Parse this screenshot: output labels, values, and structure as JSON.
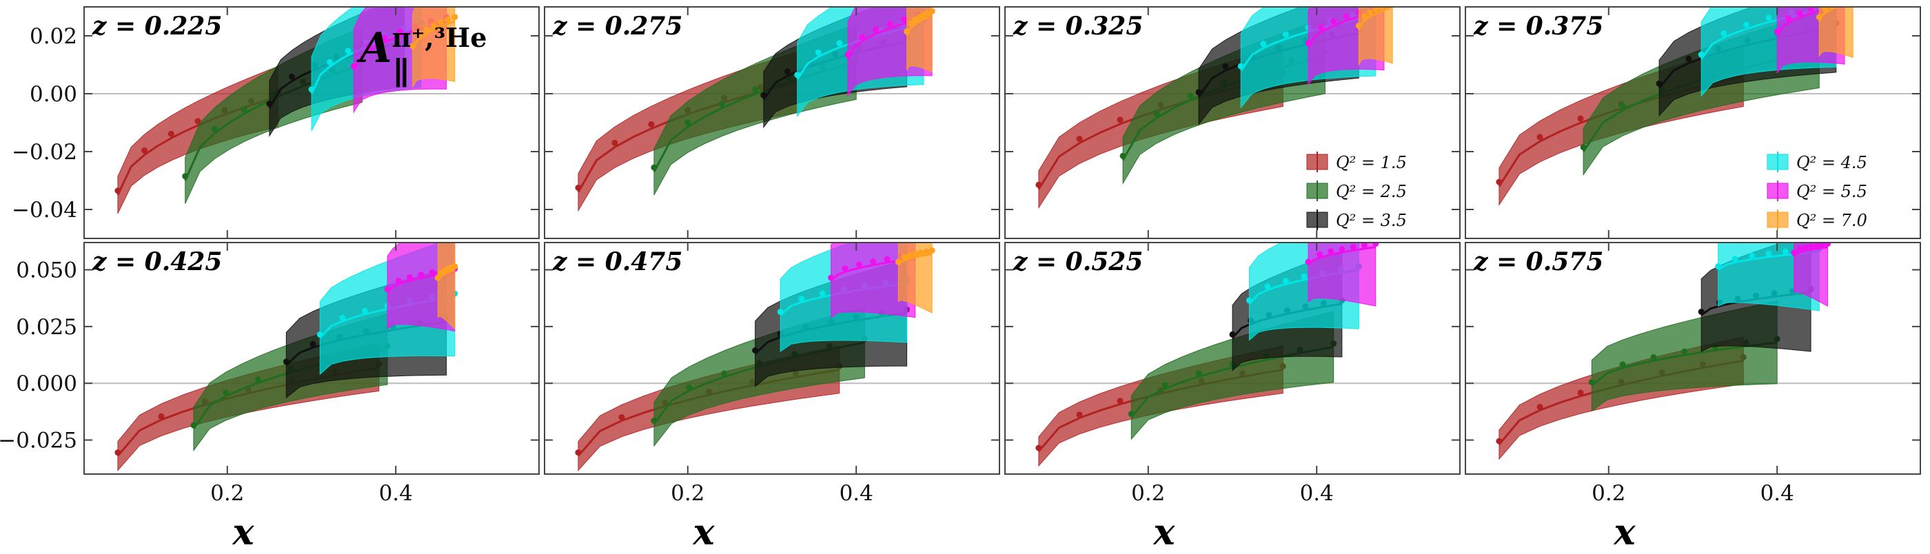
{
  "chart_data": {
    "type": "line",
    "figure_label": "A_{∥}^{π⁺,³He}",
    "figure_label_main": "A",
    "figure_label_sub": "∥",
    "figure_label_sup": "π⁺,³He",
    "xlabel": "x",
    "x_ticks": [
      "0.2",
      "0.4"
    ],
    "xlim": [
      0.03,
      0.57
    ],
    "row_ylims": [
      [
        -0.05,
        0.03
      ],
      [
        -0.04,
        0.062
      ]
    ],
    "row_yticks": [
      [
        {
          "v": 0.02,
          "label": "0.02"
        },
        {
          "v": 0.0,
          "label": "0.00"
        },
        {
          "v": -0.02,
          "label": "−0.02"
        },
        {
          "v": -0.04,
          "label": "−0.04"
        }
      ],
      [
        {
          "v": 0.05,
          "label": "0.050"
        },
        {
          "v": 0.025,
          "label": "0.025"
        },
        {
          "v": 0.0,
          "label": "0.000"
        },
        {
          "v": -0.025,
          "label": "−0.025"
        }
      ]
    ],
    "zero_line": true,
    "series_meta": [
      {
        "name": "Q² = 1.5",
        "color": "#b22222"
      },
      {
        "name": "Q² = 2.5",
        "color": "#1f6e1f"
      },
      {
        "name": "Q² = 3.5",
        "color": "#111111"
      },
      {
        "name": "Q² = 4.5",
        "color": "#00e5e5"
      },
      {
        "name": "Q² = 5.5",
        "color": "#ee11ee"
      },
      {
        "name": "Q² = 7.0",
        "color": "#ffa020"
      }
    ],
    "legend_left": {
      "panel": 2,
      "items": [
        0,
        1,
        2
      ]
    },
    "legend_right": {
      "panel": 3,
      "items": [
        3,
        4,
        5
      ]
    },
    "panels": [
      {
        "title": "z = 0.225",
        "row": 0,
        "col": 0,
        "series": [
          {
            "s": 0,
            "x0": 0.07,
            "x1": 0.26,
            "y0": -0.035,
            "y1": -0.001,
            "w": 0.008
          },
          {
            "s": 1,
            "x0": 0.15,
            "x1": 0.36,
            "y0": -0.03,
            "y1": 0.01,
            "w": 0.01
          },
          {
            "s": 2,
            "x0": 0.25,
            "x1": 0.41,
            "y0": -0.005,
            "y1": 0.018,
            "w": 0.012
          },
          {
            "s": 3,
            "x0": 0.3,
            "x1": 0.43,
            "y0": 0.0,
            "y1": 0.023,
            "w": 0.016
          },
          {
            "s": 4,
            "x0": 0.35,
            "x1": 0.46,
            "y0": 0.008,
            "y1": 0.025,
            "w": 0.018
          },
          {
            "s": 5,
            "x0": 0.42,
            "x1": 0.47,
            "y0": 0.015,
            "y1": 0.025,
            "w": 0.016
          }
        ]
      },
      {
        "title": "z = 0.275",
        "row": 0,
        "col": 1,
        "series": [
          {
            "s": 0,
            "x0": 0.07,
            "x1": 0.33,
            "y0": -0.034,
            "y1": 0.004,
            "w": 0.008
          },
          {
            "s": 1,
            "x0": 0.16,
            "x1": 0.4,
            "y0": -0.027,
            "y1": 0.011,
            "w": 0.01
          },
          {
            "s": 2,
            "x0": 0.29,
            "x1": 0.46,
            "y0": -0.002,
            "y1": 0.018,
            "w": 0.012
          },
          {
            "s": 3,
            "x0": 0.33,
            "x1": 0.48,
            "y0": 0.005,
            "y1": 0.024,
            "w": 0.016
          },
          {
            "s": 4,
            "x0": 0.39,
            "x1": 0.49,
            "y0": 0.012,
            "y1": 0.027,
            "w": 0.016
          },
          {
            "s": 5,
            "x0": 0.46,
            "x1": 0.49,
            "y0": 0.02,
            "y1": 0.027,
            "w": 0.015
          }
        ]
      },
      {
        "title": "z = 0.325",
        "row": 0,
        "col": 2,
        "series": [
          {
            "s": 0,
            "x0": 0.07,
            "x1": 0.36,
            "y0": -0.033,
            "y1": 0.006,
            "w": 0.008
          },
          {
            "s": 1,
            "x0": 0.17,
            "x1": 0.41,
            "y0": -0.023,
            "y1": 0.013,
            "w": 0.01
          },
          {
            "s": 2,
            "x0": 0.26,
            "x1": 0.45,
            "y0": -0.001,
            "y1": 0.021,
            "w": 0.012
          },
          {
            "s": 3,
            "x0": 0.31,
            "x1": 0.47,
            "y0": 0.008,
            "y1": 0.027,
            "w": 0.016
          },
          {
            "s": 4,
            "x0": 0.39,
            "x1": 0.48,
            "y0": 0.016,
            "y1": 0.029,
            "w": 0.016
          },
          {
            "s": 5,
            "x0": 0.45,
            "x1": 0.49,
            "y0": 0.022,
            "y1": 0.03,
            "w": 0.015
          }
        ]
      },
      {
        "title": "z = 0.375",
        "row": 0,
        "col": 3,
        "series": [
          {
            "s": 0,
            "x0": 0.07,
            "x1": 0.36,
            "y0": -0.032,
            "y1": 0.006,
            "w": 0.008
          },
          {
            "s": 1,
            "x0": 0.17,
            "x1": 0.45,
            "y0": -0.02,
            "y1": 0.015,
            "w": 0.01
          },
          {
            "s": 2,
            "x0": 0.26,
            "x1": 0.47,
            "y0": 0.002,
            "y1": 0.023,
            "w": 0.012
          },
          {
            "s": 3,
            "x0": 0.31,
            "x1": 0.47,
            "y0": 0.012,
            "y1": 0.03,
            "w": 0.016
          },
          {
            "s": 4,
            "x0": 0.4,
            "x1": 0.48,
            "y0": 0.02,
            "y1": 0.031,
            "w": 0.016
          },
          {
            "s": 5,
            "x0": 0.45,
            "x1": 0.49,
            "y0": 0.025,
            "y1": 0.032,
            "w": 0.015
          }
        ]
      },
      {
        "title": "z = 0.425",
        "row": 1,
        "col": 0,
        "series": [
          {
            "s": 0,
            "x0": 0.07,
            "x1": 0.38,
            "y0": -0.032,
            "y1": 0.007,
            "w": 0.008
          },
          {
            "s": 1,
            "x0": 0.16,
            "x1": 0.39,
            "y0": -0.02,
            "y1": 0.015,
            "w": 0.012
          },
          {
            "s": 2,
            "x0": 0.27,
            "x1": 0.46,
            "y0": 0.008,
            "y1": 0.027,
            "w": 0.018
          },
          {
            "s": 3,
            "x0": 0.31,
            "x1": 0.47,
            "y0": 0.02,
            "y1": 0.038,
            "w": 0.02
          },
          {
            "s": 4,
            "x0": 0.39,
            "x1": 0.47,
            "y0": 0.04,
            "y1": 0.049,
            "w": 0.02
          },
          {
            "s": 5,
            "x0": 0.45,
            "x1": 0.47,
            "y0": 0.045,
            "y1": 0.05,
            "w": 0.02
          }
        ]
      },
      {
        "title": "z = 0.475",
        "row": 1,
        "col": 1,
        "series": [
          {
            "s": 0,
            "x0": 0.07,
            "x1": 0.38,
            "y0": -0.032,
            "y1": 0.006,
            "w": 0.008
          },
          {
            "s": 1,
            "x0": 0.16,
            "x1": 0.41,
            "y0": -0.018,
            "y1": 0.018,
            "w": 0.012
          },
          {
            "s": 2,
            "x0": 0.28,
            "x1": 0.46,
            "y0": 0.013,
            "y1": 0.031,
            "w": 0.018
          },
          {
            "s": 3,
            "x0": 0.31,
            "x1": 0.46,
            "y0": 0.03,
            "y1": 0.044,
            "w": 0.02
          },
          {
            "s": 4,
            "x0": 0.37,
            "x1": 0.47,
            "y0": 0.045,
            "y1": 0.055,
            "w": 0.02
          },
          {
            "s": 5,
            "x0": 0.45,
            "x1": 0.49,
            "y0": 0.052,
            "y1": 0.057,
            "w": 0.02
          }
        ]
      },
      {
        "title": "z = 0.525",
        "row": 1,
        "col": 2,
        "series": [
          {
            "s": 0,
            "x0": 0.07,
            "x1": 0.36,
            "y0": -0.03,
            "y1": 0.006,
            "w": 0.008
          },
          {
            "s": 1,
            "x0": 0.18,
            "x1": 0.42,
            "y0": -0.015,
            "y1": 0.016,
            "w": 0.012
          },
          {
            "s": 2,
            "x0": 0.3,
            "x1": 0.43,
            "y0": 0.02,
            "y1": 0.035,
            "w": 0.018
          },
          {
            "s": 3,
            "x0": 0.32,
            "x1": 0.45,
            "y0": 0.035,
            "y1": 0.05,
            "w": 0.02
          },
          {
            "s": 4,
            "x0": 0.39,
            "x1": 0.47,
            "y0": 0.052,
            "y1": 0.06,
            "w": 0.02
          }
        ]
      },
      {
        "title": "z = 0.575",
        "row": 1,
        "col": 3,
        "series": [
          {
            "s": 0,
            "x0": 0.07,
            "x1": 0.36,
            "y0": -0.027,
            "y1": 0.01,
            "w": 0.008
          },
          {
            "s": 1,
            "x0": 0.18,
            "x1": 0.4,
            "y0": -0.001,
            "y1": 0.018,
            "w": 0.014
          },
          {
            "s": 2,
            "x0": 0.31,
            "x1": 0.44,
            "y0": 0.03,
            "y1": 0.04,
            "w": 0.02
          },
          {
            "s": 3,
            "x0": 0.33,
            "x1": 0.45,
            "y0": 0.05,
            "y1": 0.058,
            "w": 0.02
          },
          {
            "s": 4,
            "x0": 0.42,
            "x1": 0.46,
            "y0": 0.056,
            "y1": 0.06,
            "w": 0.02
          }
        ]
      }
    ]
  }
}
